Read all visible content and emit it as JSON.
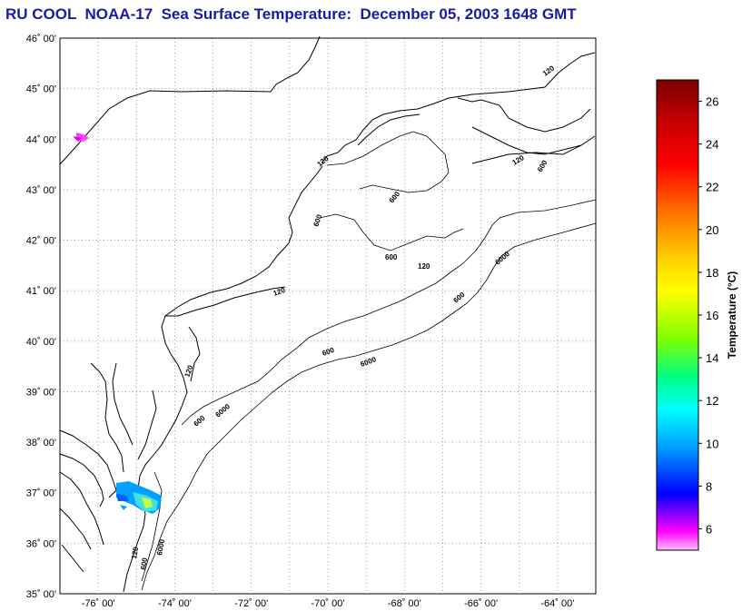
{
  "title": "RU COOL  NOAA-17  Sea Surface Temperature:  December 05, 2003 1648 GMT",
  "map": {
    "lon_range": [
      -77,
      -63
    ],
    "lat_range": [
      35,
      46
    ],
    "lat_ticks": [
      "46˚ 00'",
      "45˚ 00'",
      "44˚ 00'",
      "43˚ 00'",
      "42˚ 00'",
      "41˚ 00'",
      "40˚ 00'",
      "39˚ 00'",
      "38˚ 00'",
      "37˚ 00'",
      "36˚ 00'",
      "35˚ 00'"
    ],
    "lon_ticks": [
      "-76˚ 00'",
      "-74˚ 00'",
      "-72˚ 00'",
      "-70˚ 00'",
      "-68˚ 00'",
      "-66˚ 00'",
      "-64˚ 00'"
    ],
    "grid": "dotted",
    "contour_labels": [
      "120",
      "600",
      "6000"
    ]
  },
  "colorbar": {
    "title": "Temperature (°C)",
    "range": [
      5,
      27
    ],
    "ticks": [
      "26",
      "24",
      "22",
      "20",
      "18",
      "16",
      "14",
      "12",
      "10",
      "8",
      "6"
    ],
    "colors": [
      "#7a0000",
      "#c00000",
      "#ff0000",
      "#ff7000",
      "#ffd000",
      "#ffff00",
      "#80ff00",
      "#00ff80",
      "#00ffff",
      "#00a0ff",
      "#0040ff",
      "#0000ff",
      "#8000ff",
      "#ff00ff",
      "#ffc0ff"
    ]
  }
}
